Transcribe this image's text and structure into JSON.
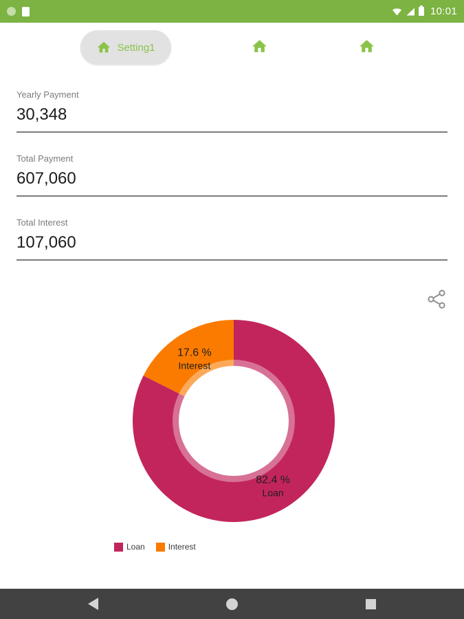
{
  "colors": {
    "accent_green": "#8BC34A",
    "status_bar": "#7CB342",
    "nav_bar": "#424242",
    "loan": "#C2255C",
    "interest": "#FA7B00"
  },
  "status_bar": {
    "time": "10:01"
  },
  "tabs": {
    "selected": {
      "label": "Setting1",
      "icon": "home-icon"
    },
    "others": [
      {
        "icon": "home-icon"
      },
      {
        "icon": "home-icon"
      }
    ]
  },
  "fields": [
    {
      "label": "Yearly Payment",
      "value": "30,348"
    },
    {
      "label": "Total Payment",
      "value": "607,060"
    },
    {
      "label": "Total Interest",
      "value": "107,060"
    }
  ],
  "chart_data": {
    "type": "pie",
    "donut": true,
    "start_angle_deg": 0,
    "clockwise": true,
    "series": [
      {
        "name": "Loan",
        "value": 82.4,
        "percent_label": "82.4 %",
        "color": "#C2255C"
      },
      {
        "name": "Interest",
        "value": 17.6,
        "percent_label": "17.6 %",
        "color": "#FA7B00"
      }
    ],
    "legend": [
      "Loan",
      "Interest"
    ]
  },
  "nav_bar": {
    "icons": [
      "back-icon",
      "home-icon",
      "recents-icon"
    ]
  }
}
